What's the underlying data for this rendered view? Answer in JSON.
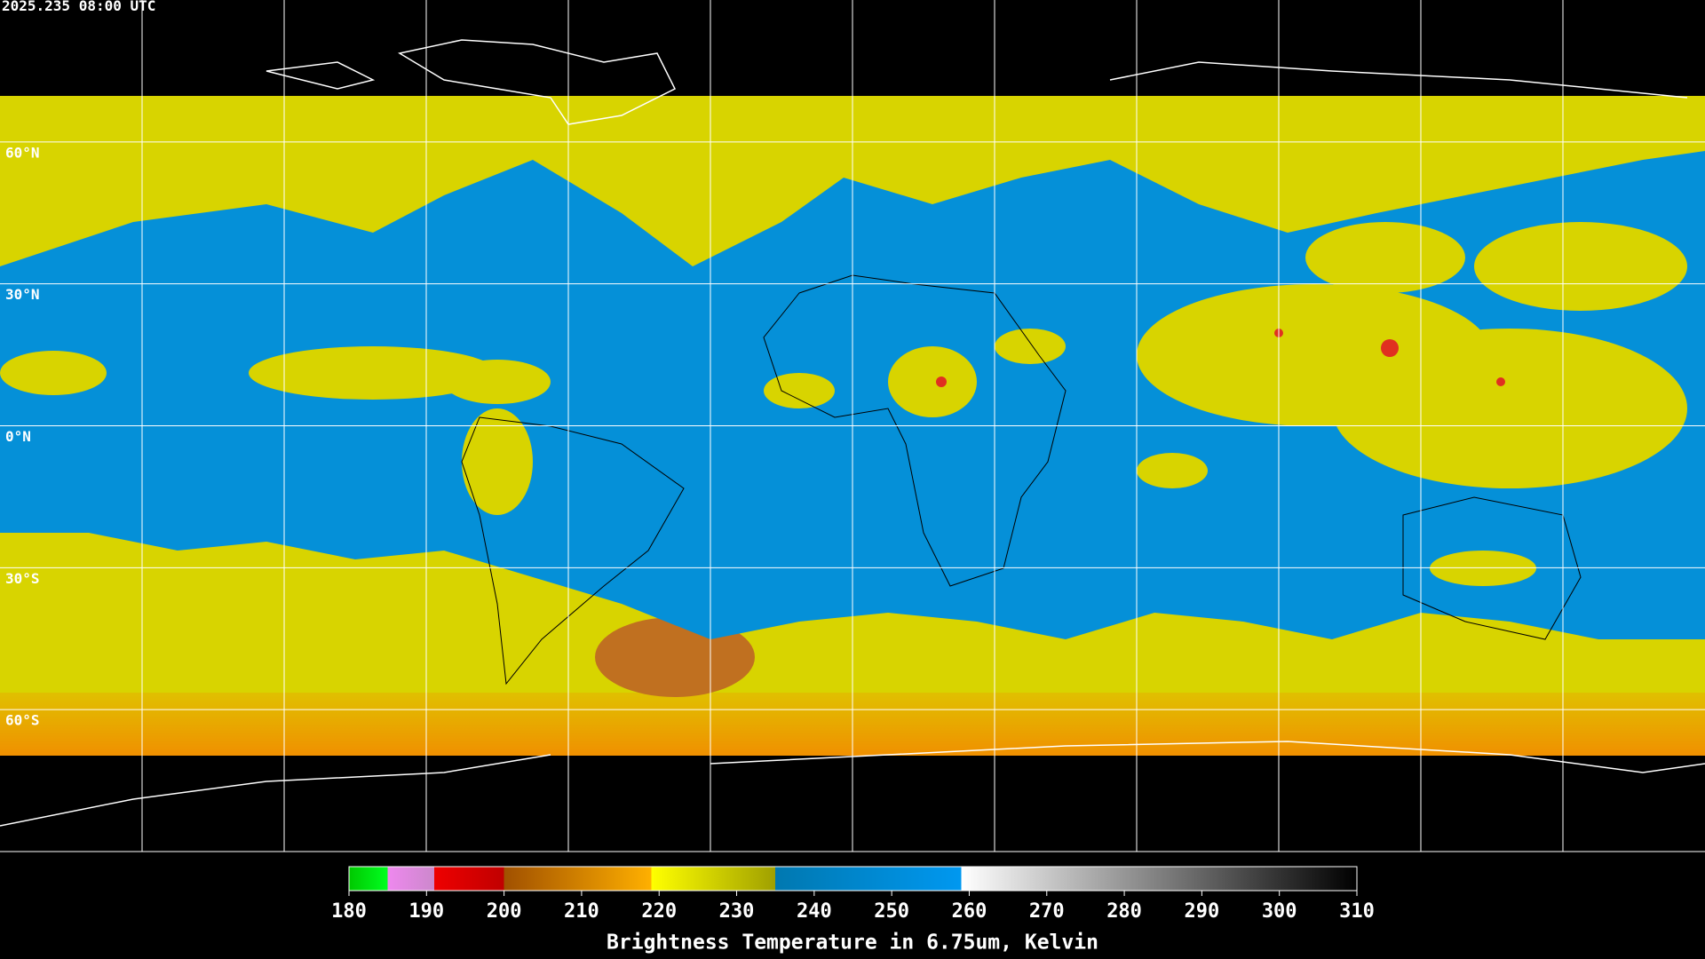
{
  "header": {
    "timestamp": "2025.235 08:00 UTC"
  },
  "map": {
    "lat_lines": [
      {
        "value": 60,
        "label": "60°N"
      },
      {
        "value": 30,
        "label": "30°N"
      },
      {
        "value": 0,
        "label": "0°N"
      },
      {
        "value": -30,
        "label": "30°S"
      },
      {
        "value": -60,
        "label": "60°S"
      }
    ],
    "lat_range": [
      90,
      -90
    ]
  },
  "colorbar": {
    "label": "Brightness Temperature in 6.75um, Kelvin",
    "range": [
      180,
      310
    ],
    "ticks": [
      180,
      190,
      200,
      210,
      220,
      230,
      240,
      250,
      260,
      270,
      280,
      290,
      300,
      310
    ]
  }
}
